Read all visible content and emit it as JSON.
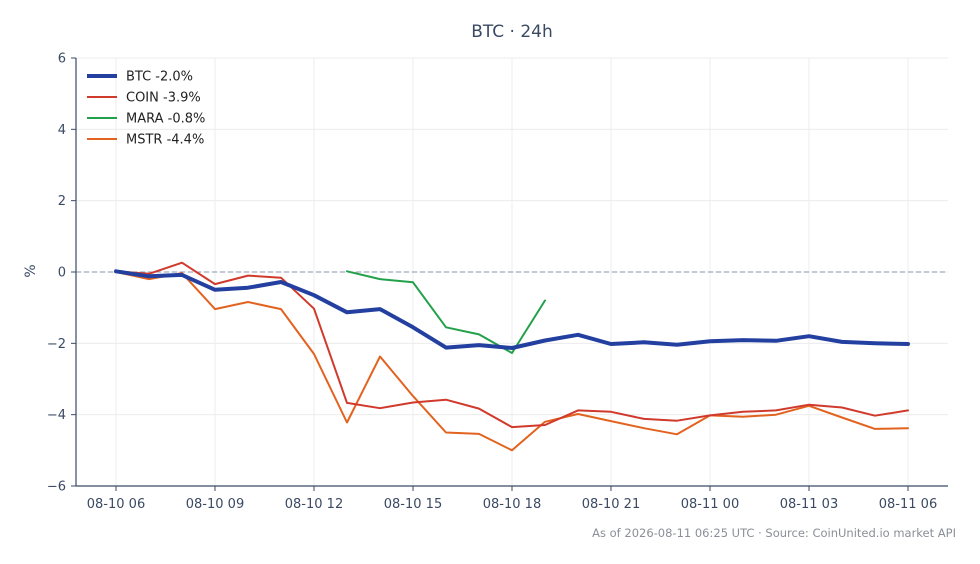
{
  "chart_data": {
    "type": "line",
    "title": "BTC · 24h",
    "xlabel": "",
    "ylabel": "%",
    "ylim": [
      -6,
      6
    ],
    "yticks": [
      -6,
      -4,
      -2,
      0,
      2,
      4,
      6
    ],
    "ytick_labels": [
      "−6",
      "−4",
      "−2",
      "0",
      "2",
      "4",
      "6"
    ],
    "xlim": [
      0,
      24.6
    ],
    "xticks": [
      0,
      3,
      6,
      9,
      12,
      15,
      18,
      21,
      24
    ],
    "xtick_labels": [
      "08-10 06",
      "08-10 09",
      "08-10 12",
      "08-10 15",
      "08-10 18",
      "08-10 21",
      "08-11 00",
      "08-11 03",
      "08-11 06"
    ],
    "grid": true,
    "legend_position": "top-left",
    "reference_line": 0,
    "series": [
      {
        "name": "BTC -2.0%",
        "color": "#2340a0",
        "x": [
          0,
          1,
          2,
          3,
          4,
          5,
          6,
          7,
          8,
          9,
          10,
          11,
          12,
          13,
          14,
          15,
          16,
          17,
          18,
          19,
          20,
          21,
          22,
          23,
          24
        ],
        "values": [
          0.02,
          -0.12,
          -0.08,
          -0.5,
          -0.44,
          -0.28,
          -0.65,
          -1.13,
          -1.04,
          -1.55,
          -2.12,
          -2.05,
          -2.13,
          -1.92,
          -1.76,
          -2.02,
          -1.97,
          -2.04,
          -1.94,
          -1.91,
          -1.93,
          -1.8,
          -1.96,
          -2.0,
          -2.02
        ]
      },
      {
        "name": "COIN -3.9%",
        "color": "#d03a2c",
        "x": [
          0,
          1,
          2,
          3,
          4,
          5,
          6,
          7,
          8,
          9,
          10,
          11,
          12,
          13,
          14,
          15,
          16,
          17,
          18,
          19,
          20,
          21,
          22,
          23,
          24
        ],
        "values": [
          0.02,
          -0.05,
          0.26,
          -0.34,
          -0.1,
          -0.16,
          -1.03,
          -3.67,
          -3.82,
          -3.66,
          -3.58,
          -3.83,
          -4.35,
          -4.29,
          -3.88,
          -3.92,
          -4.12,
          -4.17,
          -4.02,
          -3.92,
          -3.88,
          -3.72,
          -3.8,
          -4.03,
          -3.88
        ]
      },
      {
        "name": "MARA -0.8%",
        "color": "#22a04a",
        "x": [
          7,
          8,
          9,
          10,
          11,
          12,
          13
        ],
        "values": [
          0.02,
          -0.2,
          -0.29,
          -1.55,
          -1.75,
          -2.27,
          -0.8
        ]
      },
      {
        "name": "MSTR -4.4%",
        "color": "#e2631f",
        "x": [
          0,
          1,
          2,
          3,
          4,
          5,
          6,
          7,
          8,
          9,
          10,
          11,
          12,
          13,
          14,
          15,
          16,
          17,
          18,
          19,
          20,
          21,
          22,
          23,
          24
        ],
        "values": [
          0.0,
          -0.2,
          -0.03,
          -1.04,
          -0.84,
          -1.04,
          -2.3,
          -4.22,
          -2.37,
          -3.48,
          -4.5,
          -4.54,
          -5.0,
          -4.2,
          -3.98,
          -4.18,
          -4.38,
          -4.55,
          -4.02,
          -4.06,
          -4.0,
          -3.75,
          -4.08,
          -4.4,
          -4.38
        ]
      }
    ]
  },
  "footer": {
    "text": "As of 2026-08-11 06:25 UTC · Source: CoinUnited.io market API"
  }
}
